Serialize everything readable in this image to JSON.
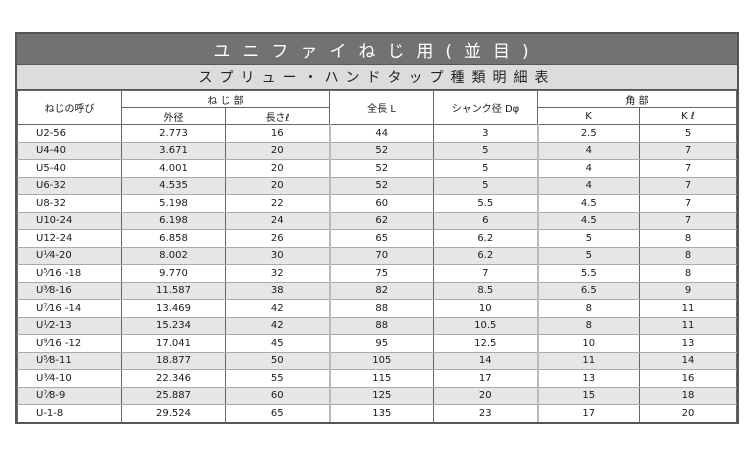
{
  "title": "ユニファイねじ用(並目)",
  "subtitle": "スプリュー・ハンドタップ種類明細表",
  "headers": {
    "name": "ねじの呼び",
    "thread_group": "ね じ 部",
    "outer_diameter": "外径",
    "thread_length": "長さℓ",
    "total_length": "全長 L",
    "shank_diameter": "シャンク径 Dφ",
    "square_group": "角 部",
    "k": "K",
    "kl": "K ℓ"
  },
  "rows": [
    {
      "name": "U2-56",
      "od": "2.773",
      "len": "16",
      "total": "44",
      "shank": "3",
      "k": "2.5",
      "kl": "5"
    },
    {
      "name": "U4-40",
      "od": "3.671",
      "len": "20",
      "total": "52",
      "shank": "5",
      "k": "4",
      "kl": "7"
    },
    {
      "name": "U5-40",
      "od": "4.001",
      "len": "20",
      "total": "52",
      "shank": "5",
      "k": "4",
      "kl": "7"
    },
    {
      "name": "U6-32",
      "od": "4.535",
      "len": "20",
      "total": "52",
      "shank": "5",
      "k": "4",
      "kl": "7"
    },
    {
      "name": "U8-32",
      "od": "5.198",
      "len": "22",
      "total": "60",
      "shank": "5.5",
      "k": "4.5",
      "kl": "7"
    },
    {
      "name": "U10-24",
      "od": "6.198",
      "len": "24",
      "total": "62",
      "shank": "6",
      "k": "4.5",
      "kl": "7"
    },
    {
      "name": "U12-24",
      "od": "6.858",
      "len": "26",
      "total": "65",
      "shank": "6.2",
      "k": "5",
      "kl": "8"
    },
    {
      "name": "U¹⁄4-20",
      "od": "8.002",
      "len": "30",
      "total": "70",
      "shank": "6.2",
      "k": "5",
      "kl": "8"
    },
    {
      "name": "U⁵⁄16 -18",
      "od": "9.770",
      "len": "32",
      "total": "75",
      "shank": "7",
      "k": "5.5",
      "kl": "8"
    },
    {
      "name": "U³⁄8-16",
      "od": "11.587",
      "len": "38",
      "total": "82",
      "shank": "8.5",
      "k": "6.5",
      "kl": "9"
    },
    {
      "name": "U⁷⁄16 -14",
      "od": "13.469",
      "len": "42",
      "total": "88",
      "shank": "10",
      "k": "8",
      "kl": "11"
    },
    {
      "name": "U¹⁄2-13",
      "od": "15.234",
      "len": "42",
      "total": "88",
      "shank": "10.5",
      "k": "8",
      "kl": "11"
    },
    {
      "name": "U⁹⁄16 -12",
      "od": "17.041",
      "len": "45",
      "total": "95",
      "shank": "12.5",
      "k": "10",
      "kl": "13"
    },
    {
      "name": "U⁵⁄8-11",
      "od": "18.877",
      "len": "50",
      "total": "105",
      "shank": "14",
      "k": "11",
      "kl": "14"
    },
    {
      "name": "U³⁄4-10",
      "od": "22.346",
      "len": "55",
      "total": "115",
      "shank": "17",
      "k": "13",
      "kl": "16"
    },
    {
      "name": "U⁷⁄8-9",
      "od": "25.887",
      "len": "60",
      "total": "125",
      "shank": "20",
      "k": "15",
      "kl": "18"
    },
    {
      "name": "U-1-8",
      "od": "29.524",
      "len": "65",
      "total": "135",
      "shank": "23",
      "k": "17",
      "kl": "20"
    }
  ],
  "colors": {
    "title_bg": "#727272",
    "subtitle_bg": "#dcdcdc",
    "alt_row": "#e6e6e6"
  }
}
